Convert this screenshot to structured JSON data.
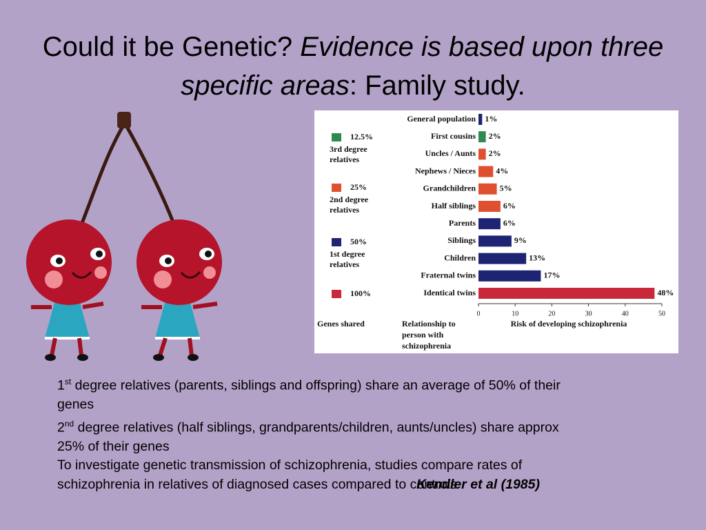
{
  "title": {
    "plain": "Could it be Genetic?",
    "italic": "Evidence is based upon three specific areas",
    "rest": ": Family study."
  },
  "chart_data": {
    "type": "hbar",
    "categories": [
      "General population",
      "First cousins",
      "Uncles / Aunts",
      "Nephews / Nieces",
      "Grandchildren",
      "Half siblings",
      "Parents",
      "Siblings",
      "Children",
      "Fraternal twins",
      "Identical twins"
    ],
    "values": [
      1,
      2,
      2,
      4,
      5,
      6,
      6,
      9,
      13,
      17,
      48
    ],
    "value_labels": [
      "1%",
      "2%",
      "2%",
      "4%",
      "5%",
      "6%",
      "6%",
      "9%",
      "13%",
      "17%",
      "48%"
    ],
    "colors": [
      "#1c2473",
      "#2e8a52",
      "#de5030",
      "#de5030",
      "#de5030",
      "#de5030",
      "#1c2473",
      "#1c2473",
      "#1c2473",
      "#1c2473",
      "#c8283a"
    ],
    "xlim": [
      0,
      50
    ],
    "xticks": [
      0,
      10,
      20,
      30,
      40,
      50
    ],
    "xlabel": "Risk of developing schizophrenia",
    "category_axis_label": [
      "Relationship to",
      "person with",
      "schizophrenia"
    ],
    "legend": {
      "title": "Genes shared",
      "items": [
        {
          "label": "12.5%",
          "lines": [
            "3rd degree",
            "relatives"
          ],
          "color": "#2e8a52"
        },
        {
          "label": "25%",
          "lines": [
            "2nd degree",
            "relatives"
          ],
          "color": "#de5030"
        },
        {
          "label": "50%",
          "lines": [
            "1st degree",
            "relatives"
          ],
          "color": "#1c2473"
        },
        {
          "label": "100%",
          "lines": [],
          "color": "#c8283a"
        }
      ]
    }
  },
  "body": {
    "paragraphs": [
      {
        "number": "1",
        "sup": "st",
        "text": "degree relatives (parents, siblings and offspring) share an average of 50% of their genes"
      },
      {
        "number": "2",
        "sup": "nd",
        "text": "degree relatives (half siblings, grandparents/children, aunts/uncles) share approx 25% of their genes"
      },
      {
        "text": "To investigate genetic transmission of schizophrenia, studies compare rates of schizophrenia in relatives of diagnosed cases compared to controls"
      }
    ],
    "citation": "Kendler et al (1985)"
  }
}
